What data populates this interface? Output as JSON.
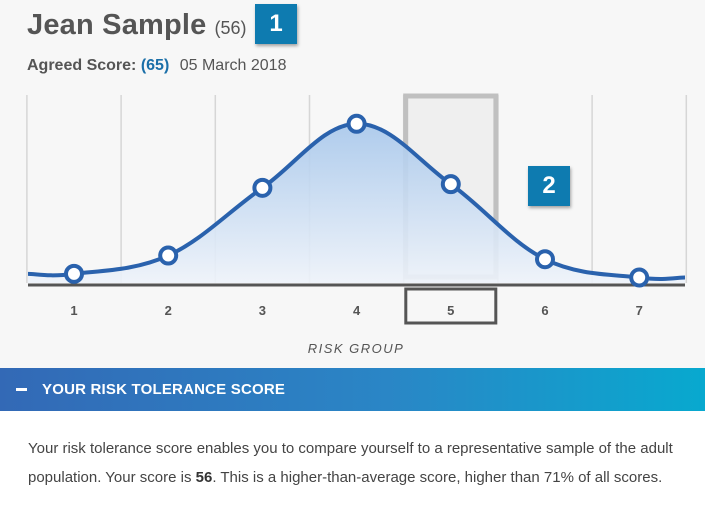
{
  "header": {
    "name": "Jean Sample",
    "score_paren": "(56)",
    "badge1": "1",
    "badge2": "2",
    "agreed_label": "Agreed Score:",
    "agreed_value": "(65)",
    "agreed_date": "05 March 2018"
  },
  "chart_data": {
    "type": "area",
    "x": [
      1,
      2,
      3,
      4,
      5,
      6,
      7
    ],
    "values": [
      0.05,
      0.15,
      0.52,
      0.87,
      0.54,
      0.13,
      0.03
    ],
    "tick_labels": [
      "1",
      "2",
      "3",
      "4",
      "5",
      "6",
      "7"
    ],
    "xlabel": "RISK GROUP",
    "highlight_group": 5,
    "grid": true,
    "colors": {
      "line": "#2a62ad",
      "fill_top": "#a7c7eb",
      "fill_bottom": "#eef3fa",
      "highlight": "#bdbdbd"
    }
  },
  "section": {
    "toggle_icon": "minus-icon",
    "title": "YOUR RISK TOLERANCE SCORE"
  },
  "description": {
    "text_before": "Your risk tolerance score enables you to compare yourself to a representative sample of the adult population. Your score is ",
    "score": "56",
    "text_after": ". This is a higher-than-average score, higher than 71% of all scores."
  },
  "colors": {
    "badge": "#0e7bb0",
    "accent_text": "#1a6fa8",
    "section_gradient_start": "#3369b6",
    "section_gradient_end": "#08a9cf"
  }
}
